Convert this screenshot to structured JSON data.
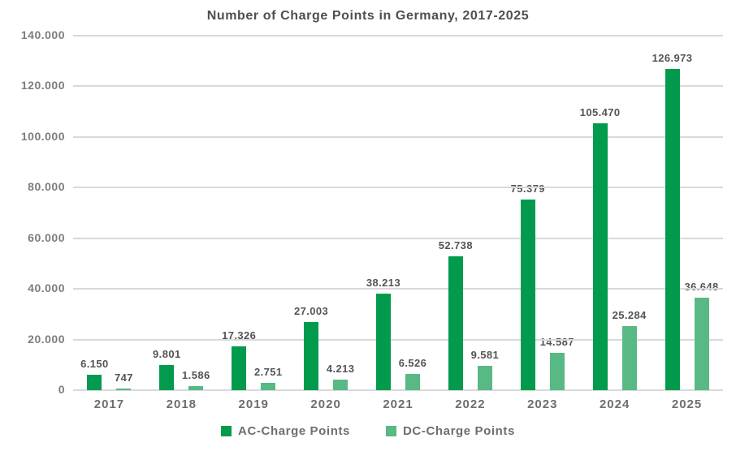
{
  "title": "Number of Charge Points in Germany, 2017-2025",
  "chart_data": {
    "type": "bar",
    "title": "Number of Charge Points in Germany, 2017-2025",
    "categories": [
      "2017",
      "2018",
      "2019",
      "2020",
      "2021",
      "2022",
      "2023",
      "2024",
      "2025"
    ],
    "series": [
      {
        "name": "AC-Charge Points",
        "color": "#029a4d",
        "values": [
          6150,
          9801,
          17326,
          27003,
          38213,
          52738,
          75379,
          105470,
          126973
        ],
        "labels": [
          "6.150",
          "9.801",
          "17.326",
          "27.003",
          "38.213",
          "52.738",
          "75.379",
          "105.470",
          "126.973"
        ]
      },
      {
        "name": "DC-Charge Points",
        "color": "#58b984",
        "values": [
          747,
          1586,
          2751,
          4213,
          6526,
          9581,
          14587,
          25284,
          36648
        ],
        "labels": [
          "747",
          "1.586",
          "2.751",
          "4.213",
          "6.526",
          "9.581",
          "14.587",
          "25.284",
          "36.648"
        ]
      }
    ],
    "xlabel": "",
    "ylabel": "",
    "ylim": [
      0,
      140000
    ],
    "ytick_step": 20000,
    "ytick_labels": [
      "0",
      "20.000",
      "40.000",
      "60.000",
      "80.000",
      "100.000",
      "120.000",
      "140.000"
    ],
    "grid": true,
    "gridline_color": "#d9d9d9",
    "legend_position": "bottom"
  }
}
